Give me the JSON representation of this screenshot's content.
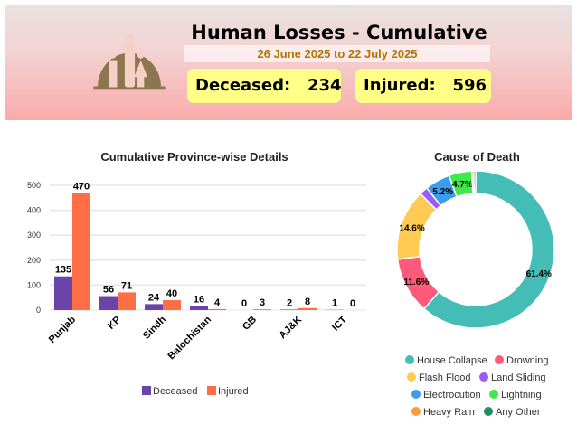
{
  "header": {
    "title": "Human Losses - Cumulative",
    "dates": "26 June 2025 to 22 July 2025",
    "deceased_label": "Deceased:",
    "deceased_value": "234",
    "injured_label": "Injured:",
    "injured_value": "596"
  },
  "chart_data": [
    {
      "type": "bar",
      "title": "Cumulative Province-wise Details",
      "categories": [
        "Punjab",
        "KP",
        "Sindh",
        "Balochistan",
        "GB",
        "AJ&K",
        "ICT"
      ],
      "series": [
        {
          "name": "Deceased",
          "values": [
            135,
            56,
            24,
            16,
            0,
            2,
            1
          ],
          "color": "#6a44a8"
        },
        {
          "name": "Injured",
          "values": [
            470,
            71,
            40,
            4,
            3,
            8,
            0
          ],
          "color": "#ff6e45"
        }
      ],
      "ylim": [
        0,
        500
      ],
      "yticks": [
        0,
        100,
        200,
        300,
        400,
        500
      ],
      "grid": true,
      "legend": "bottom"
    },
    {
      "type": "pie",
      "title": "Cause of Death",
      "donut": true,
      "slices": [
        {
          "label": "House Collapse",
          "percent": 61.4,
          "color": "#45bdb7",
          "show": "61.4%"
        },
        {
          "label": "Drowning",
          "percent": 11.6,
          "color": "#ff5a7a",
          "show": "11.6%"
        },
        {
          "label": "Flash Flood",
          "percent": 14.6,
          "color": "#ffcb52",
          "show": "14.6%"
        },
        {
          "label": "Land Sliding",
          "percent": 1.7,
          "color": "#9d5cf0",
          "show": ""
        },
        {
          "label": "Electrocution",
          "percent": 5.2,
          "color": "#3a9ded",
          "show": "5.2%"
        },
        {
          "label": "Lightning",
          "percent": 4.7,
          "color": "#41e84a",
          "show": "4.7%"
        },
        {
          "label": "Heavy Rain",
          "percent": 0.4,
          "color": "#ff9a3c",
          "show": ""
        },
        {
          "label": "Any Other",
          "percent": 0.4,
          "color": "#1f8f60",
          "show": ""
        }
      ],
      "legend": "bottom"
    }
  ]
}
